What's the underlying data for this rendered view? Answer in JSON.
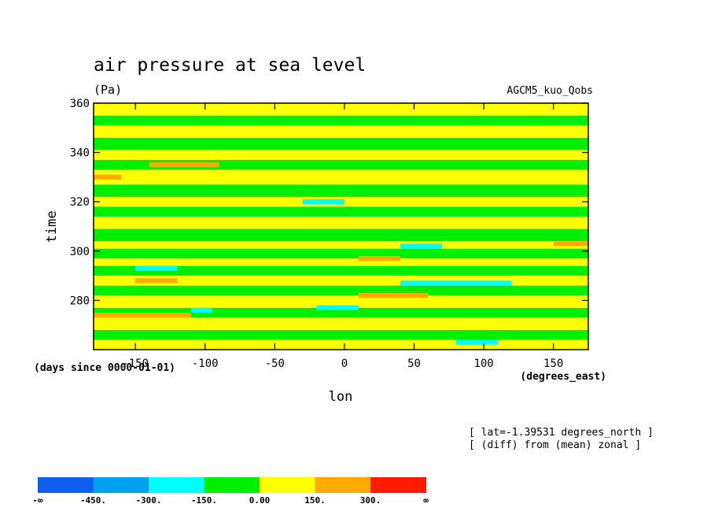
{
  "chart_data": {
    "type": "heatmap",
    "title": "air pressure at sea level",
    "units": "(Pa)",
    "model_label": "AGCM5_kuo_Qobs",
    "xlabel": "lon",
    "ylabel": "time",
    "x_units": "(degrees_east)",
    "y_units": "(days since 0000-01-01)",
    "xlim": [
      -180,
      175
    ],
    "ylim": [
      260,
      360
    ],
    "x_ticks": [
      -150,
      -100,
      -50,
      0,
      50,
      100,
      150
    ],
    "x_tick_labels": [
      "-150",
      "-100",
      "-50",
      "0",
      "50",
      "100",
      "150"
    ],
    "y_ticks": [
      280,
      300,
      320,
      340,
      360
    ],
    "y_tick_labels": [
      "280",
      "300",
      "320",
      "340",
      "360"
    ],
    "annotations": [
      "[ lat=-1.39531 degrees_north ]",
      "[ (diff) from (mean) zonal ]"
    ],
    "levels": [
      -450,
      -300,
      -150,
      0,
      150,
      300
    ],
    "colorbar": {
      "colors": [
        "#1060f0",
        "#00a0f0",
        "#00ffff",
        "#00ee00",
        "#ffff00",
        "#ffaa00",
        "#ff1a00"
      ],
      "labels": [
        "-∞",
        "-450.",
        "-300.",
        "-150.",
        "0.00",
        "150.",
        "300.",
        "∞"
      ]
    },
    "field_bands": [
      {
        "t_start": 260,
        "t_end": 264,
        "value": 60
      },
      {
        "t_start": 264,
        "t_end": 268,
        "value": -40
      },
      {
        "t_start": 268,
        "t_end": 273,
        "value": 30
      },
      {
        "t_start": 273,
        "t_end": 277,
        "value": -60
      },
      {
        "t_start": 277,
        "t_end": 282,
        "value": 90
      },
      {
        "t_start": 282,
        "t_end": 286,
        "value": -50
      },
      {
        "t_start": 286,
        "t_end": 290,
        "value": 70
      },
      {
        "t_start": 290,
        "t_end": 294,
        "value": -80
      },
      {
        "t_start": 294,
        "t_end": 297,
        "value": 40
      },
      {
        "t_start": 297,
        "t_end": 301,
        "value": -70
      },
      {
        "t_start": 301,
        "t_end": 304,
        "value": 50
      },
      {
        "t_start": 304,
        "t_end": 309,
        "value": -60
      },
      {
        "t_start": 309,
        "t_end": 314,
        "value": 80
      },
      {
        "t_start": 314,
        "t_end": 318,
        "value": -40
      },
      {
        "t_start": 318,
        "t_end": 322,
        "value": 60
      },
      {
        "t_start": 322,
        "t_end": 327,
        "value": -70
      },
      {
        "t_start": 327,
        "t_end": 333,
        "value": 90
      },
      {
        "t_start": 333,
        "t_end": 337,
        "value": -60
      },
      {
        "t_start": 337,
        "t_end": 341,
        "value": 40
      },
      {
        "t_start": 341,
        "t_end": 346,
        "value": -70
      },
      {
        "t_start": 346,
        "t_end": 351,
        "value": 70
      },
      {
        "t_start": 351,
        "t_end": 355,
        "value": -50
      },
      {
        "t_start": 355,
        "t_end": 360,
        "value": 50
      }
    ],
    "patches": [
      {
        "lon_start": -180,
        "lon_end": -110,
        "t_start": 273,
        "t_end": 275,
        "value": 180
      },
      {
        "lon_start": -150,
        "lon_end": -120,
        "t_start": 287,
        "t_end": 289,
        "value": 170
      },
      {
        "lon_start": 10,
        "lon_end": 60,
        "t_start": 281,
        "t_end": 283,
        "value": 160
      },
      {
        "lon_start": -140,
        "lon_end": -90,
        "t_start": 334,
        "t_end": 336,
        "value": 170
      },
      {
        "lon_start": -180,
        "lon_end": -160,
        "t_start": 329,
        "t_end": 331,
        "value": 160
      },
      {
        "lon_start": 10,
        "lon_end": 40,
        "t_start": 296,
        "t_end": 298,
        "value": 160
      },
      {
        "lon_start": 150,
        "lon_end": 175,
        "t_start": 302,
        "t_end": 304,
        "value": 160
      },
      {
        "lon_start": 40,
        "lon_end": 120,
        "t_start": 286,
        "t_end": 288,
        "value": -170
      },
      {
        "lon_start": 40,
        "lon_end": 70,
        "t_start": 301,
        "t_end": 303,
        "value": -160
      },
      {
        "lon_start": -150,
        "lon_end": -120,
        "t_start": 292,
        "t_end": 294,
        "value": -160
      },
      {
        "lon_start": -110,
        "lon_end": -95,
        "t_start": 275,
        "t_end": 277,
        "value": -160
      },
      {
        "lon_start": -20,
        "lon_end": 10,
        "t_start": 276,
        "t_end": 278,
        "value": -160
      },
      {
        "lon_start": 80,
        "lon_end": 110,
        "t_start": 262,
        "t_end": 264,
        "value": -160
      },
      {
        "lon_start": -30,
        "lon_end": 0,
        "t_start": 319,
        "t_end": 321,
        "value": -155
      }
    ]
  }
}
